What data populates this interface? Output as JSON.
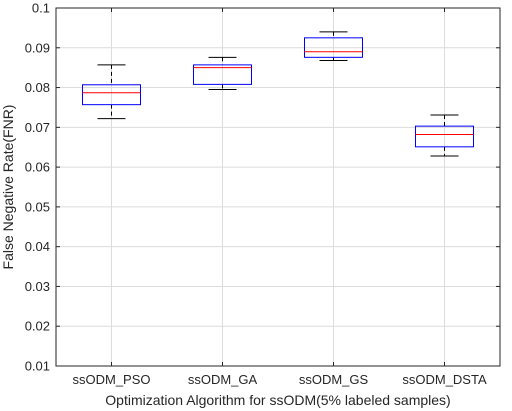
{
  "chart_data": {
    "type": "box",
    "xlabel": "Optimization Algorithm for ssODM(5% labeled samples)",
    "ylabel": "False Negative Rate(FNR)",
    "ylim": [
      0.01,
      0.1
    ],
    "yticks": [
      "0.01",
      "0.02",
      "0.03",
      "0.04",
      "0.05",
      "0.06",
      "0.07",
      "0.08",
      "0.09",
      "0.1"
    ],
    "grid": true,
    "box_color": "#0000ff",
    "median_color": "#ff0000",
    "whisker_color": "#000000",
    "categories": [
      "ssODM_PSO",
      "ssODM_GA",
      "ssODM_GS",
      "ssODM_DSTA"
    ],
    "boxes": [
      {
        "category": "ssODM_PSO",
        "whisker_low": 0.0722,
        "q1": 0.0757,
        "median": 0.0787,
        "q3": 0.0807,
        "whisker_high": 0.0857
      },
      {
        "category": "ssODM_GA",
        "whisker_low": 0.0795,
        "q1": 0.0808,
        "median": 0.085,
        "q3": 0.0857,
        "whisker_high": 0.0876
      },
      {
        "category": "ssODM_GS",
        "whisker_low": 0.0868,
        "q1": 0.0876,
        "median": 0.089,
        "q3": 0.0925,
        "whisker_high": 0.094
      },
      {
        "category": "ssODM_DSTA",
        "whisker_low": 0.0628,
        "q1": 0.0651,
        "median": 0.0682,
        "q3": 0.0703,
        "whisker_high": 0.0731
      }
    ]
  }
}
